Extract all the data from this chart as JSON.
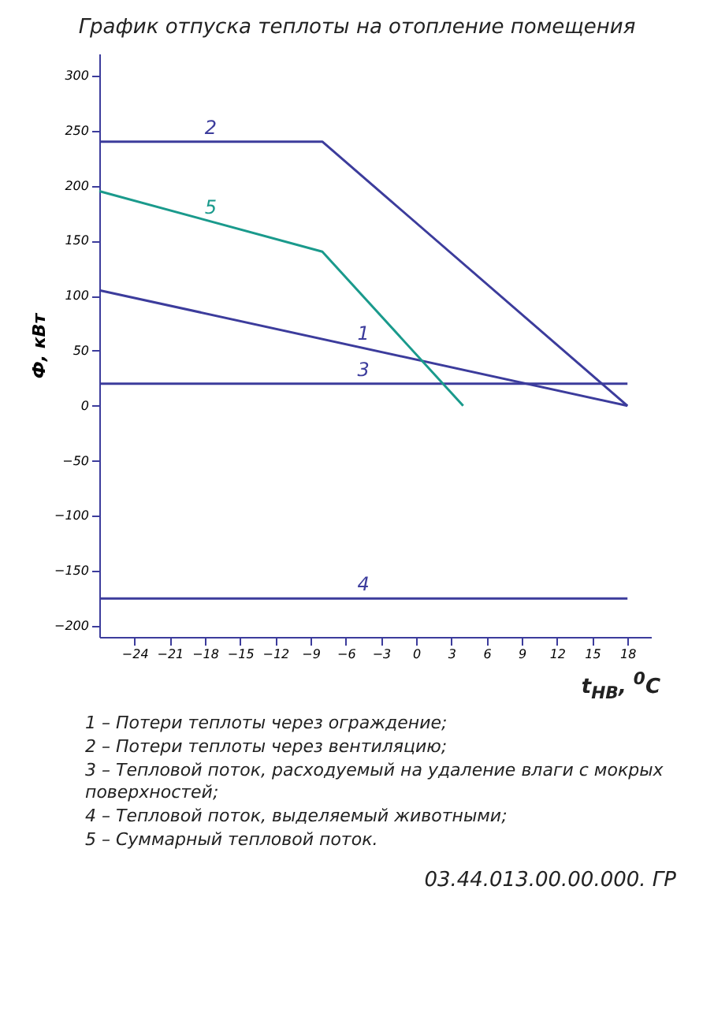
{
  "chart_data": {
    "type": "line",
    "title": "График отпуска теплоты на отопление помещения",
    "xlabel": "t$_{НВ}$, $^{0}$C",
    "ylabel": "Ф, кВт",
    "xlim": [
      -27,
      20
    ],
    "ylim": [
      -210,
      320
    ],
    "xticks": [
      -24,
      -21,
      -18,
      -15,
      -12,
      -9,
      -6,
      -3,
      0,
      3,
      6,
      9,
      12,
      15,
      18
    ],
    "yticks": [
      -200,
      -150,
      -100,
      -50,
      0,
      50,
      100,
      150,
      200,
      250,
      300
    ],
    "grid": false,
    "legend": false,
    "marker": "none",
    "line_style": "solid",
    "series": [
      {
        "name": "1",
        "color": "#3c3c9c",
        "x": [
          -27,
          18
        ],
        "values": [
          105,
          0
        ]
      },
      {
        "name": "2",
        "color": "#3c3c9c",
        "x": [
          -27,
          -8,
          18
        ],
        "values": [
          240,
          240,
          0
        ]
      },
      {
        "name": "3",
        "color": "#3c3c9c",
        "x": [
          -27,
          18
        ],
        "values": [
          20,
          20
        ]
      },
      {
        "name": "4",
        "color": "#3c3c9c",
        "x": [
          -27,
          18
        ],
        "values": [
          -175,
          -175
        ]
      },
      {
        "name": "5",
        "color": "#1a9a8c",
        "x": [
          -27,
          -8,
          4
        ],
        "values": [
          195,
          140,
          0
        ]
      }
    ],
    "annotations": [
      "1 – Потери теплоты через ограждение;",
      "2 – Потери теплоты через вентиляцию;",
      "3 – Тепловой поток, расходуемый на удаление влаги с мокрых поверхностей;",
      "4 – Тепловой поток, выделяемый животными;",
      "5 – Суммарный тепловой поток.",
      "03.44.013.00.00.000. ГР"
    ]
  }
}
